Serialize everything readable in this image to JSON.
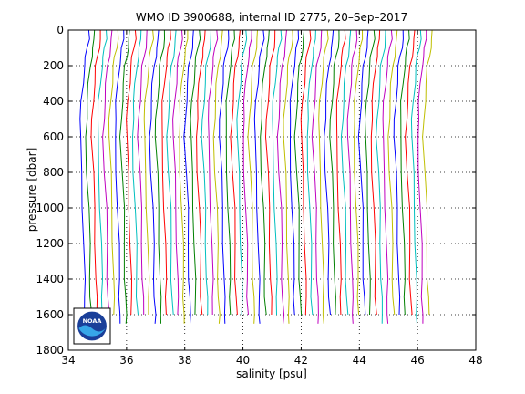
{
  "chart_data": {
    "type": "line",
    "title": "WMO ID 3900688, internal ID 2775, 20–Sep–2017",
    "xlabel": "salinity [psu]",
    "ylabel": "pressure [dbar]",
    "xlim": [
      34,
      48
    ],
    "ylim": [
      0,
      1800
    ],
    "y_reversed": true,
    "grid": "dotted",
    "xticks": [
      34,
      36,
      38,
      40,
      42,
      44,
      46,
      48
    ],
    "yticks": [
      0,
      200,
      400,
      600,
      800,
      1000,
      1200,
      1400,
      1600,
      1800
    ],
    "logo": "NOAA",
    "series_colors": [
      "#0000ff",
      "#008000",
      "#ff0000",
      "#00bfbf",
      "#bf00bf",
      "#bfbf00"
    ],
    "offset_step_psu": 0.2,
    "profile_count": 60,
    "profile_shape": [
      {
        "p": 0,
        "s": 34.7
      },
      {
        "p": 50,
        "s": 34.7
      },
      {
        "p": 100,
        "s": 34.65
      },
      {
        "p": 150,
        "s": 34.6
      },
      {
        "p": 200,
        "s": 34.55
      },
      {
        "p": 300,
        "s": 34.5
      },
      {
        "p": 400,
        "s": 34.45
      },
      {
        "p": 500,
        "s": 34.42
      },
      {
        "p": 600,
        "s": 34.4
      },
      {
        "p": 800,
        "s": 34.45
      },
      {
        "p": 1000,
        "s": 34.5
      },
      {
        "p": 1200,
        "s": 34.53
      },
      {
        "p": 1400,
        "s": 34.55
      },
      {
        "p": 1500,
        "s": 34.56
      },
      {
        "p": 1600,
        "s": 34.58
      },
      {
        "p": 1650,
        "s": 34.58
      }
    ]
  }
}
